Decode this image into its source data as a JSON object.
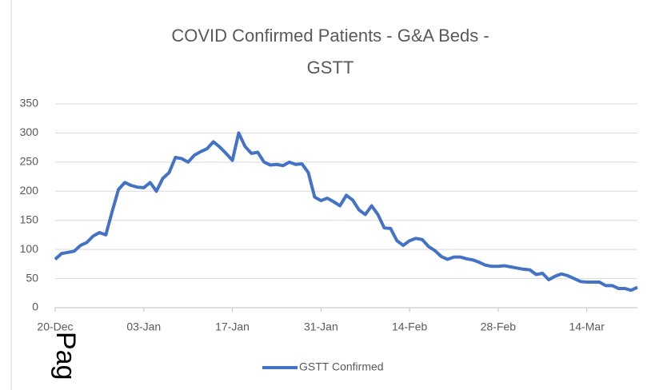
{
  "chart_data": {
    "type": "line",
    "title": [
      "COVID Confirmed Patients - G&A Beds -",
      "GSTT"
    ],
    "categories": [
      "20-Dec",
      "21-Dec",
      "22-Dec",
      "23-Dec",
      "24-Dec",
      "25-Dec",
      "26-Dec",
      "27-Dec",
      "28-Dec",
      "29-Dec",
      "30-Dec",
      "31-Dec",
      "01-Jan",
      "02-Jan",
      "03-Jan",
      "04-Jan",
      "05-Jan",
      "06-Jan",
      "07-Jan",
      "08-Jan",
      "09-Jan",
      "10-Jan",
      "11-Jan",
      "12-Jan",
      "13-Jan",
      "14-Jan",
      "15-Jan",
      "16-Jan",
      "17-Jan",
      "18-Jan",
      "19-Jan",
      "20-Jan",
      "21-Jan",
      "22-Jan",
      "23-Jan",
      "24-Jan",
      "25-Jan",
      "26-Jan",
      "27-Jan",
      "28-Jan",
      "29-Jan",
      "30-Jan",
      "31-Jan",
      "01-Feb",
      "02-Feb",
      "03-Feb",
      "04-Feb",
      "05-Feb",
      "06-Feb",
      "07-Feb",
      "08-Feb",
      "09-Feb",
      "10-Feb",
      "11-Feb",
      "12-Feb",
      "13-Feb",
      "14-Feb",
      "15-Feb",
      "16-Feb",
      "17-Feb",
      "18-Feb",
      "19-Feb",
      "20-Feb",
      "21-Feb",
      "22-Feb",
      "23-Feb",
      "24-Feb",
      "25-Feb",
      "26-Feb",
      "27-Feb",
      "28-Feb",
      "01-Mar",
      "02-Mar",
      "03-Mar",
      "04-Mar",
      "05-Mar",
      "06-Mar",
      "07-Mar",
      "08-Mar",
      "09-Mar",
      "10-Mar",
      "11-Mar",
      "12-Mar",
      "13-Mar",
      "14-Mar",
      "15-Mar",
      "16-Mar",
      "17-Mar",
      "18-Mar",
      "19-Mar",
      "20-Mar",
      "21-Mar",
      "22-Mar"
    ],
    "series": [
      {
        "name": "GSTT Confirmed",
        "color": "#4472c4",
        "values": [
          83,
          93,
          95,
          97,
          107,
          112,
          123,
          129,
          125,
          165,
          203,
          215,
          210,
          207,
          206,
          215,
          200,
          222,
          232,
          258,
          256,
          250,
          262,
          268,
          273,
          285,
          276,
          265,
          253,
          300,
          277,
          265,
          267,
          250,
          245,
          246,
          244,
          250,
          246,
          247,
          232,
          190,
          184,
          188,
          182,
          175,
          193,
          185,
          168,
          160,
          175,
          160,
          137,
          136,
          115,
          107,
          115,
          119,
          117,
          105,
          98,
          88,
          83,
          87,
          87,
          84,
          82,
          78,
          73,
          71,
          71,
          72,
          70,
          68,
          66,
          65,
          57,
          59,
          48,
          54,
          58,
          55,
          50,
          45,
          44,
          44,
          44,
          38,
          38,
          33,
          33,
          30,
          35
        ]
      }
    ],
    "xticks": [
      "20-Dec",
      "03-Jan",
      "17-Jan",
      "31-Jan",
      "14-Feb",
      "28-Feb",
      "14-Mar"
    ],
    "ylim": [
      0,
      350
    ],
    "yticks": [
      0,
      50,
      100,
      150,
      200,
      250,
      300,
      350
    ],
    "grid": true,
    "legend": "bottom",
    "watermark": "Pag"
  }
}
